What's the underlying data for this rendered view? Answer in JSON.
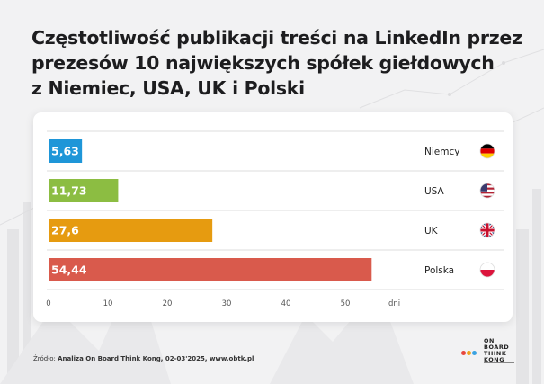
{
  "title_lines": [
    "Częstotliwość publikacji treści na LinkedIn przez",
    "prezesów 10 największych spółek giełdowych",
    "z Niemiec, USA, UK i Polski"
  ],
  "source_prefix": "Źródło: ",
  "source_text": "Analiza On Board Think Kong, 02-03'2025, www.obtk.pl",
  "logo": {
    "lines": [
      "ON",
      "BOARD",
      "THINK",
      "KONG"
    ],
    "dot_colors": [
      "#e8473d",
      "#f0a21c",
      "#3aa2e0"
    ]
  },
  "colors": {
    "background": "#f2f2f3",
    "card": "#ffffff",
    "gridline": "#dddddd",
    "axis_text": "#555555"
  },
  "chart_data": {
    "type": "bar",
    "orientation": "horizontal",
    "categories": [
      "Niemcy",
      "USA",
      "UK",
      "Polska"
    ],
    "values": [
      5.63,
      11.73,
      27.6,
      54.44
    ],
    "value_labels": [
      "5,63",
      "11,73",
      "27,6",
      "54,44"
    ],
    "bar_colors": [
      "#1e96d8",
      "#8cbd42",
      "#e69b10",
      "#d95a4c"
    ],
    "flags": [
      "germany-flag",
      "usa-flag",
      "uk-flag",
      "poland-flag"
    ],
    "x_ticks": [
      0,
      10,
      20,
      30,
      40,
      50
    ],
    "xlim": [
      0,
      56
    ],
    "x_unit": "dni",
    "title": "",
    "grid": true
  }
}
